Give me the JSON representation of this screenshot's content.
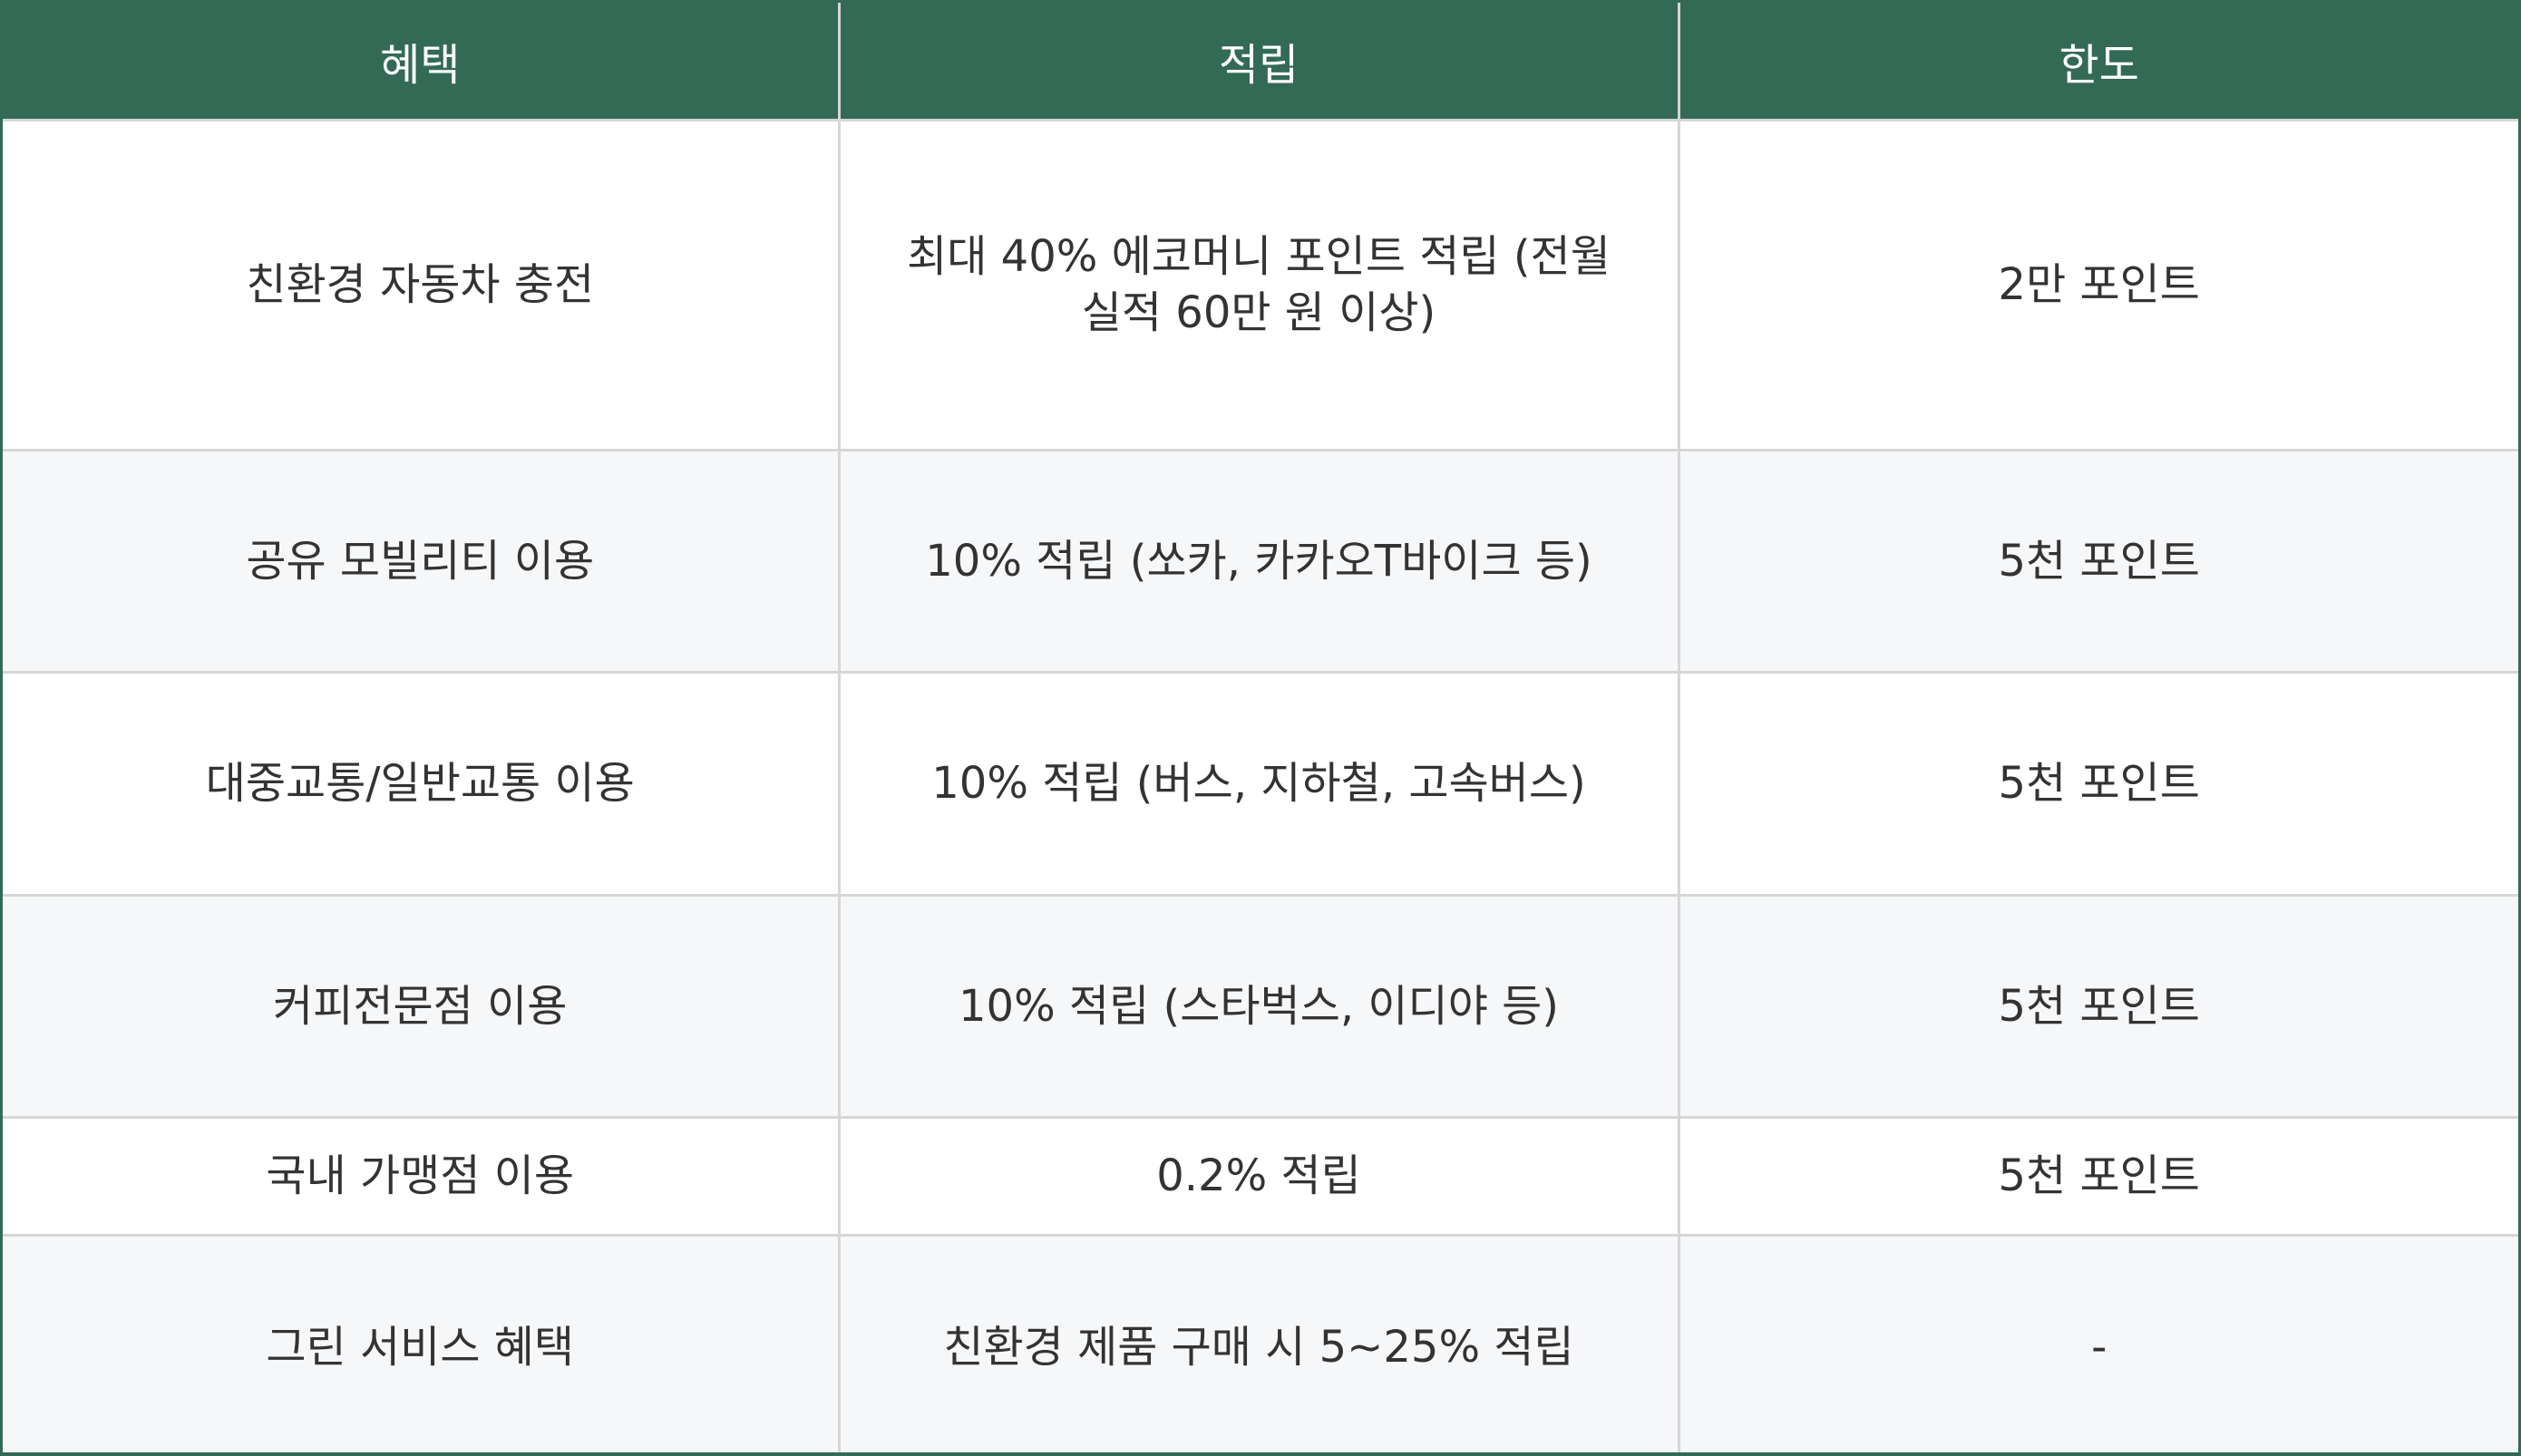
{
  "table": {
    "headers": [
      "혜택",
      "적립",
      "한도"
    ],
    "rows": [
      {
        "benefit": "친환경 자동차 충전",
        "reward": "최대 40% 에코머니 포인트 적립 (전월 실적 60만 원 이상)",
        "limit": "2만 포인트"
      },
      {
        "benefit": "공유 모빌리티 이용",
        "reward": "10% 적립 (쏘카, 카카오T바이크 등)",
        "limit": "5천 포인트"
      },
      {
        "benefit": "대중교통/일반교통 이용",
        "reward": "10% 적립 (버스, 지하철, 고속버스)",
        "limit": "5천 포인트"
      },
      {
        "benefit": "커피전문점 이용",
        "reward": "10% 적립 (스타벅스, 이디야 등)",
        "limit": "5천 포인트"
      },
      {
        "benefit": "국내 가맹점 이용",
        "reward": "0.2% 적립",
        "limit": "5천 포인트"
      },
      {
        "benefit": "그린 서비스 혜택",
        "reward": "친환경 제품 구매 시 5~25% 적립",
        "limit": "-"
      }
    ]
  },
  "colors": {
    "header_bg": "#336a55",
    "header_text": "#ffffff",
    "cell_text": "#333333",
    "alt_row_bg": "#f6f7f9",
    "grid_line": "#d6d6d6"
  }
}
